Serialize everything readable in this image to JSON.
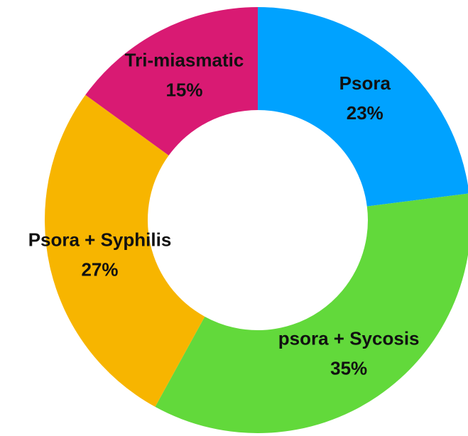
{
  "chart_data": {
    "type": "donut",
    "categories": [
      "Psora",
      "psora + Sycosis",
      "Psora + Syphilis",
      "Tri-miasmatic"
    ],
    "values": [
      23,
      35,
      27,
      15
    ],
    "value_labels": [
      "23%",
      "35%",
      "27%",
      "15%"
    ],
    "colors": [
      "#00a2ff",
      "#62d93b",
      "#f7b500",
      "#d91a73"
    ]
  }
}
